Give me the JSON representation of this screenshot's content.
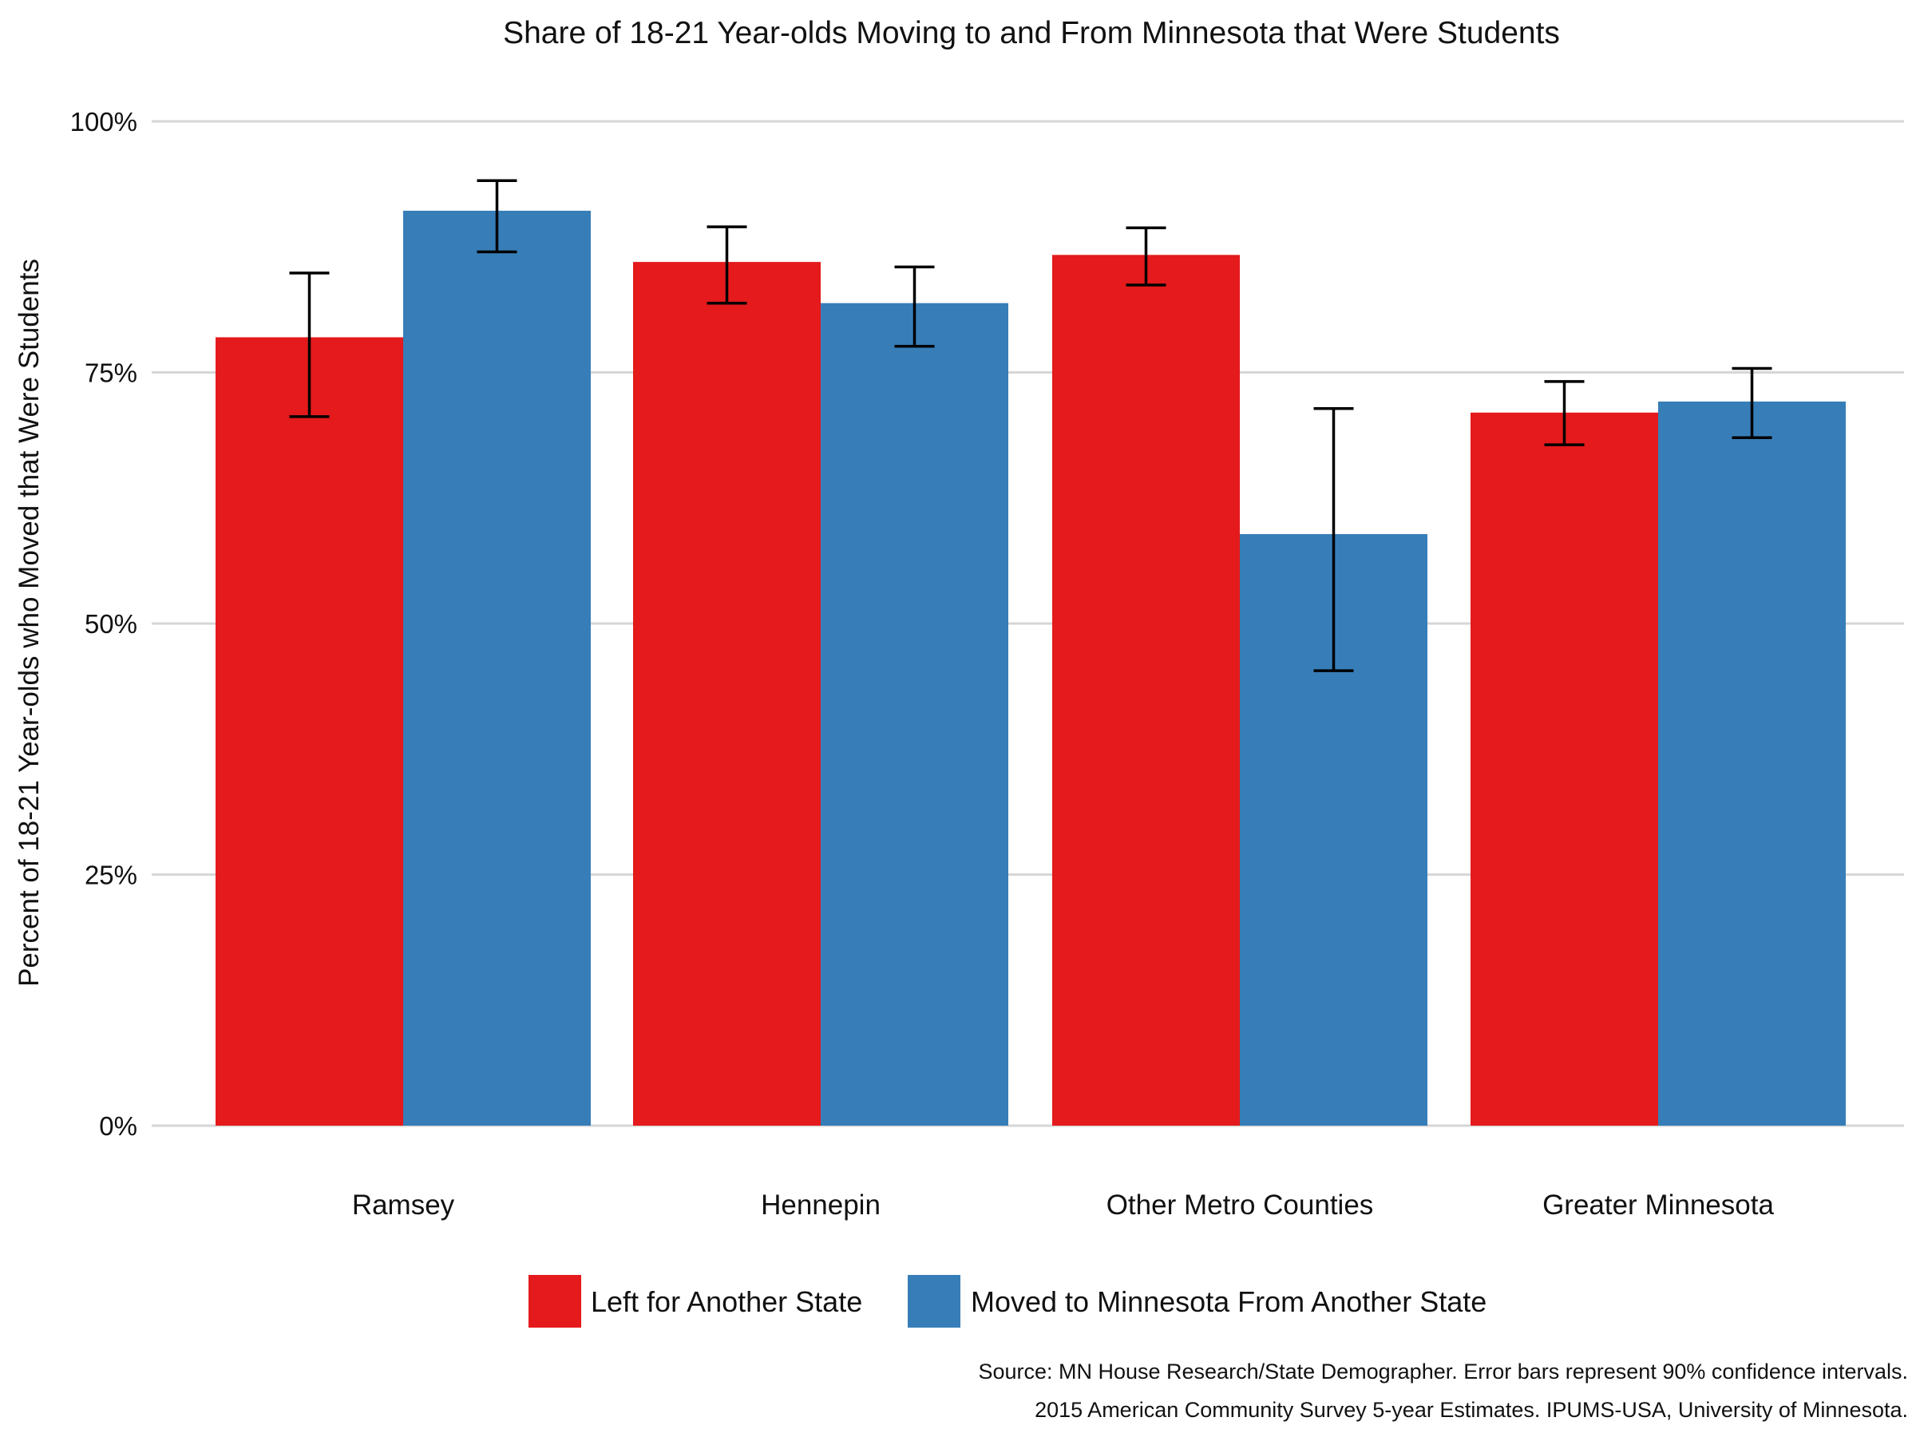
{
  "chart_data": {
    "type": "bar",
    "title": "Share of 18-21 Year-olds Moving to and From Minnesota that Were Students",
    "xlabel": "",
    "ylabel": "Percent of 18-21 Year-olds who Moved that Were Students",
    "ylim": [
      0,
      100
    ],
    "y_ticks": [
      0,
      25,
      50,
      75,
      100
    ],
    "y_tick_labels": [
      "0%",
      "25%",
      "50%",
      "75%",
      "100%"
    ],
    "grid": true,
    "legend_position": "bottom",
    "categories": [
      "Ramsey",
      "Hennepin",
      "Other Metro Counties",
      "Greater Minnesota"
    ],
    "series": [
      {
        "name": "Left for Another State",
        "color": "#e41a1c",
        "values": [
          78.5,
          86.0,
          86.7,
          71.0
        ],
        "error_low": [
          70.6,
          81.9,
          83.7,
          67.8
        ],
        "error_high": [
          84.9,
          89.5,
          89.4,
          74.1
        ]
      },
      {
        "name": "Moved to Minnesota From Another State",
        "color": "#377eb8",
        "values": [
          91.1,
          81.9,
          58.9,
          72.1
        ],
        "error_low": [
          87.0,
          77.6,
          45.3,
          68.5
        ],
        "error_high": [
          94.1,
          85.5,
          71.4,
          75.4
        ]
      }
    ],
    "caption": [
      "Source: MN House Research/State Demographer. Error bars represent 90% confidence intervals.",
      "2015 American Community Survey 5-year Estimates. IPUMS-USA, University of Minnesota."
    ]
  }
}
